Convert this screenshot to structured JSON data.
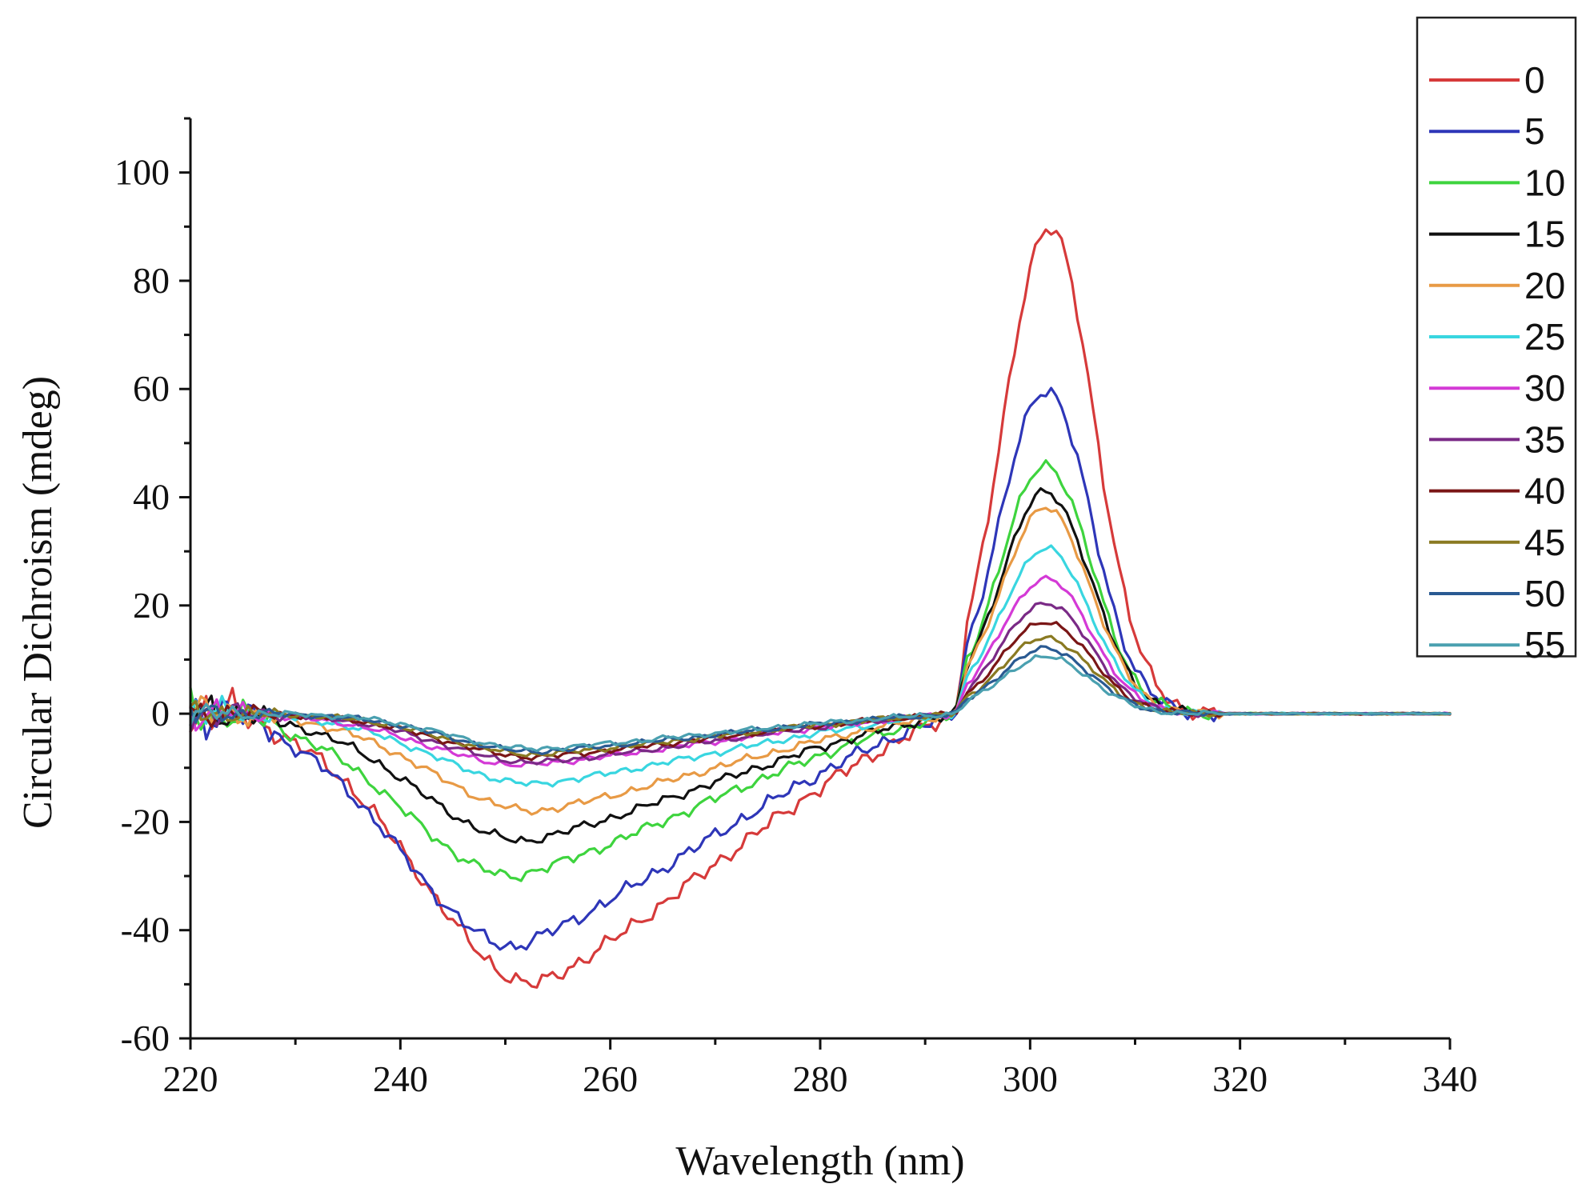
{
  "chart_data": {
    "type": "line",
    "title": "",
    "xlabel": "Wavelength (nm)",
    "ylabel": "Circular Dichroism (mdeg)",
    "xlim": [
      220,
      340
    ],
    "ylim": [
      -60,
      110
    ],
    "xticks": [
      220,
      240,
      260,
      280,
      300,
      320,
      340
    ],
    "yticks": [
      -60,
      -40,
      -20,
      0,
      20,
      40,
      60,
      80,
      100
    ],
    "grid": false,
    "legend_position": "top-right",
    "series": [
      {
        "name": "0",
        "color": "#d63a3a",
        "min": -50,
        "min_at": 253,
        "max": 90,
        "max_at": 301.8
      },
      {
        "name": "5",
        "color": "#2e36b8",
        "min": -43,
        "min_at": 251,
        "max": 60,
        "max_at": 301.5
      },
      {
        "name": "10",
        "color": "#3ed43e",
        "min": -30,
        "min_at": 251,
        "max": 46,
        "max_at": 301.5
      },
      {
        "name": "15",
        "color": "#111111",
        "min": -23.5,
        "min_at": 252,
        "max": 41,
        "max_at": 301.5
      },
      {
        "name": "20",
        "color": "#e89a45",
        "min": -18,
        "min_at": 253,
        "max": 38,
        "max_at": 301.5
      },
      {
        "name": "25",
        "color": "#39d6e0",
        "min": -13,
        "min_at": 253,
        "max": 30.5,
        "max_at": 301.5
      },
      {
        "name": "30",
        "color": "#d43ad6",
        "min": -9.5,
        "min_at": 252,
        "max": 25,
        "max_at": 301.5
      },
      {
        "name": "35",
        "color": "#7a2a86",
        "min": -9,
        "min_at": 253,
        "max": 20.5,
        "max_at": 301.5
      },
      {
        "name": "40",
        "color": "#7a1616",
        "min": -8,
        "min_at": 253,
        "max": 17,
        "max_at": 301.5
      },
      {
        "name": "45",
        "color": "#8a7a22",
        "min": -7.5,
        "min_at": 253,
        "max": 14,
        "max_at": 301.5
      },
      {
        "name": "50",
        "color": "#2a5a92",
        "min": -7,
        "min_at": 253,
        "max": 12,
        "max_at": 301.5
      },
      {
        "name": "55",
        "color": "#4aa0b0",
        "min": -6.5,
        "min_at": 253,
        "max": 10.5,
        "max_at": 301.5
      }
    ],
    "zero_crossing": 293.8
  }
}
